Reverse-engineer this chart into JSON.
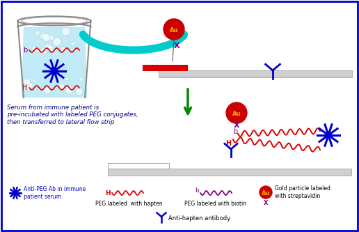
{
  "bg_color": "#ffffff",
  "border_color": "#0000cc",
  "au_color": "#cc0000",
  "au_text_color": "#ffaa00",
  "strip_color": "#d0d0d0",
  "red_bar_color": "#dd0000",
  "hapten_color": "#dd0000",
  "biotin_color": "#800080",
  "antibody_color": "#0000cc",
  "snowflake_color": "#0000cc",
  "arrow_color": "#008800",
  "cyan_color": "#00cccc",
  "serum_text": "Serum from immune patient is\npre-incubated with labeled PEG conjugates,\nthen transferred to lateral flow strip",
  "legend_items": [
    "Anti-PEG Ab in immune\npatient serum",
    "PEG labeled  with hapten",
    "PEG labeled with biotin",
    "Gold particle labeled\nwith streptavidin"
  ],
  "anti_hapten_label": "Anti-hapten antibody",
  "cup_fill": "#c0eaf5",
  "cup_bubble": "#a0d8ef"
}
